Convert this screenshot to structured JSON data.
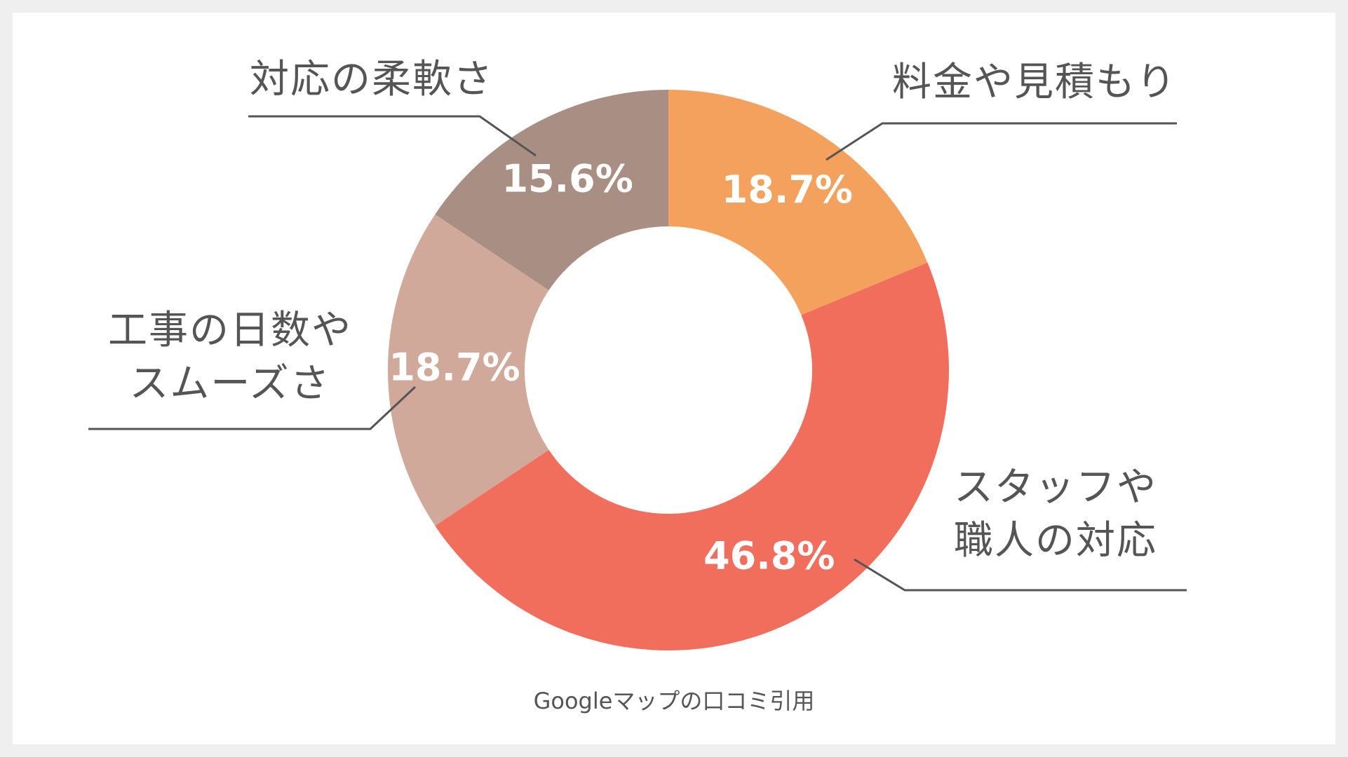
{
  "chart_data": {
    "type": "pie",
    "style": "donut",
    "slices": [
      {
        "label": "料金や見積もり",
        "value": 18.7,
        "display": "18.7%",
        "color": "#f3a15d"
      },
      {
        "label": "スタッフや職人の対応",
        "value": 46.8,
        "display": "46.8%",
        "color": "#f16e5c"
      },
      {
        "label": "工事の日数やスムーズさ",
        "value": 18.7,
        "display": "18.7%",
        "color": "#d0a99b"
      },
      {
        "label": "対応の柔軟さ",
        "value": 15.6,
        "display": "15.6%",
        "color": "#a98e83"
      }
    ]
  },
  "labels": {
    "fee_line1": "料金や見積もり",
    "staff_line1": "スタッフや",
    "staff_line2": "職人の対応",
    "days_line1": "工事の日数や",
    "days_line2": "スムーズさ",
    "flex_line1": "対応の柔軟さ"
  },
  "source": "Googleマップの口コミ引用",
  "colors": {
    "background": "#efefef",
    "card": "#ffffff",
    "text": "#555555",
    "leader_line": "#555555",
    "value_label": "#ffffff"
  }
}
